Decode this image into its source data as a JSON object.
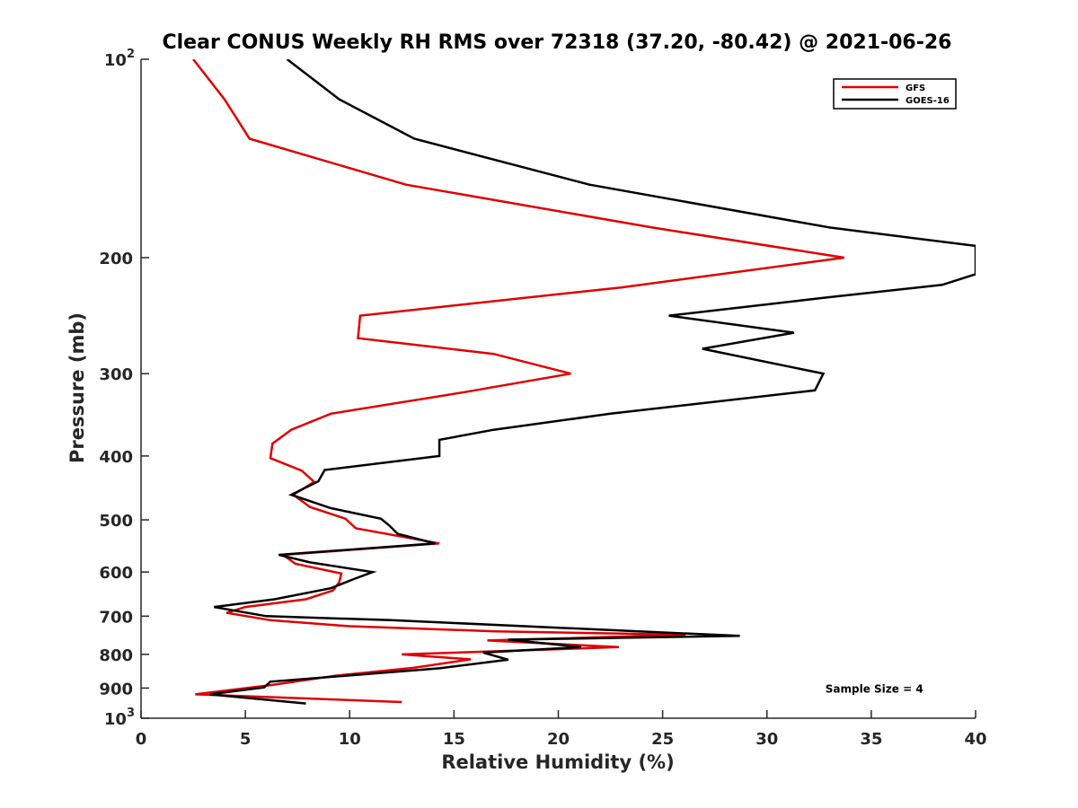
{
  "chart_data": {
    "type": "line",
    "title": "Clear CONUS Weekly RH RMS over 72318 (37.20, -80.42) @ 2021-06-26",
    "xlabel": "Relative Humidity (%)",
    "ylabel": "Pressure (mb)",
    "xlim": [
      0,
      40
    ],
    "ylim": [
      100,
      1000
    ],
    "y_scale": "log",
    "y_reversed": true,
    "grid": false,
    "legend_position": "top-right",
    "x_ticks": [
      {
        "value": 0,
        "label": "0"
      },
      {
        "value": 5,
        "label": "5"
      },
      {
        "value": 10,
        "label": "10"
      },
      {
        "value": 15,
        "label": "15"
      },
      {
        "value": 20,
        "label": "20"
      },
      {
        "value": 25,
        "label": "25"
      },
      {
        "value": 30,
        "label": "30"
      },
      {
        "value": 35,
        "label": "35"
      },
      {
        "value": 40,
        "label": "40"
      }
    ],
    "y_ticks": [
      {
        "value": 100,
        "base": "10",
        "exp": "2"
      },
      {
        "value": 200,
        "label": "200"
      },
      {
        "value": 300,
        "label": "300"
      },
      {
        "value": 400,
        "label": "400"
      },
      {
        "value": 500,
        "label": "500"
      },
      {
        "value": 600,
        "label": "600"
      },
      {
        "value": 700,
        "label": "700"
      },
      {
        "value": 800,
        "label": "800"
      },
      {
        "value": 900,
        "label": "900"
      },
      {
        "value": 1000,
        "base": "10",
        "exp": "3"
      }
    ],
    "series": [
      {
        "name": "GFS",
        "color": "#e00000",
        "points": [
          [
            2.5,
            100
          ],
          [
            4.0,
            115
          ],
          [
            5.2,
            132
          ],
          [
            12.7,
            155
          ],
          [
            24.5,
            180
          ],
          [
            33.7,
            200
          ],
          [
            23.0,
            222
          ],
          [
            10.5,
            245
          ],
          [
            10.4,
            265
          ],
          [
            16.9,
            280
          ],
          [
            20.6,
            300
          ],
          [
            15.5,
            320
          ],
          [
            9.1,
            345
          ],
          [
            7.2,
            365
          ],
          [
            6.3,
            383
          ],
          [
            6.2,
            403
          ],
          [
            7.7,
            421
          ],
          [
            8.3,
            438
          ],
          [
            7.3,
            458
          ],
          [
            8.1,
            478
          ],
          [
            9.8,
            498
          ],
          [
            10.3,
            515
          ],
          [
            14.3,
            543
          ],
          [
            6.8,
            565
          ],
          [
            7.4,
            583
          ],
          [
            9.6,
            603
          ],
          [
            9.5,
            622
          ],
          [
            9.2,
            640
          ],
          [
            7.9,
            660
          ],
          [
            5.0,
            678
          ],
          [
            4.1,
            692
          ],
          [
            6.2,
            710
          ],
          [
            10.0,
            725
          ],
          [
            17.0,
            738
          ],
          [
            26.1,
            747
          ],
          [
            16.6,
            762
          ],
          [
            22.9,
            780
          ],
          [
            12.5,
            800
          ],
          [
            15.8,
            814
          ],
          [
            13.1,
            838
          ],
          [
            9.3,
            862
          ],
          [
            6.3,
            890
          ],
          [
            2.6,
            920
          ],
          [
            12.5,
            945
          ]
        ]
      },
      {
        "name": "GOES-16",
        "color": "#000000",
        "points": [
          [
            7.0,
            100
          ],
          [
            9.5,
            115
          ],
          [
            13.1,
            132
          ],
          [
            21.5,
            155
          ],
          [
            33.0,
            180
          ],
          [
            40.0,
            192
          ],
          [
            40.0,
            212
          ],
          [
            38.4,
            220
          ],
          [
            32.8,
            230
          ],
          [
            25.3,
            245
          ],
          [
            31.3,
            260
          ],
          [
            26.9,
            275
          ],
          [
            32.7,
            300
          ],
          [
            32.3,
            318
          ],
          [
            22.5,
            345
          ],
          [
            16.9,
            365
          ],
          [
            14.3,
            378
          ],
          [
            14.3,
            400
          ],
          [
            8.8,
            420
          ],
          [
            8.5,
            437
          ],
          [
            7.2,
            458
          ],
          [
            9.1,
            480
          ],
          [
            11.5,
            498
          ],
          [
            11.9,
            510
          ],
          [
            12.3,
            525
          ],
          [
            14.1,
            543
          ],
          [
            6.6,
            565
          ],
          [
            8.1,
            580
          ],
          [
            11.1,
            600
          ],
          [
            10.2,
            615
          ],
          [
            9.1,
            635
          ],
          [
            6.4,
            660
          ],
          [
            3.5,
            678
          ],
          [
            6.0,
            700
          ],
          [
            12.0,
            710
          ],
          [
            28.7,
            750
          ],
          [
            17.6,
            760
          ],
          [
            21.1,
            780
          ],
          [
            16.4,
            795
          ],
          [
            17.6,
            815
          ],
          [
            14.3,
            840
          ],
          [
            6.2,
            880
          ],
          [
            5.9,
            898
          ],
          [
            3.3,
            920
          ],
          [
            7.9,
            950
          ]
        ]
      }
    ],
    "annotations": [
      {
        "text": "Sample Size = 4",
        "x": 32.8,
        "y": 900
      }
    ]
  }
}
